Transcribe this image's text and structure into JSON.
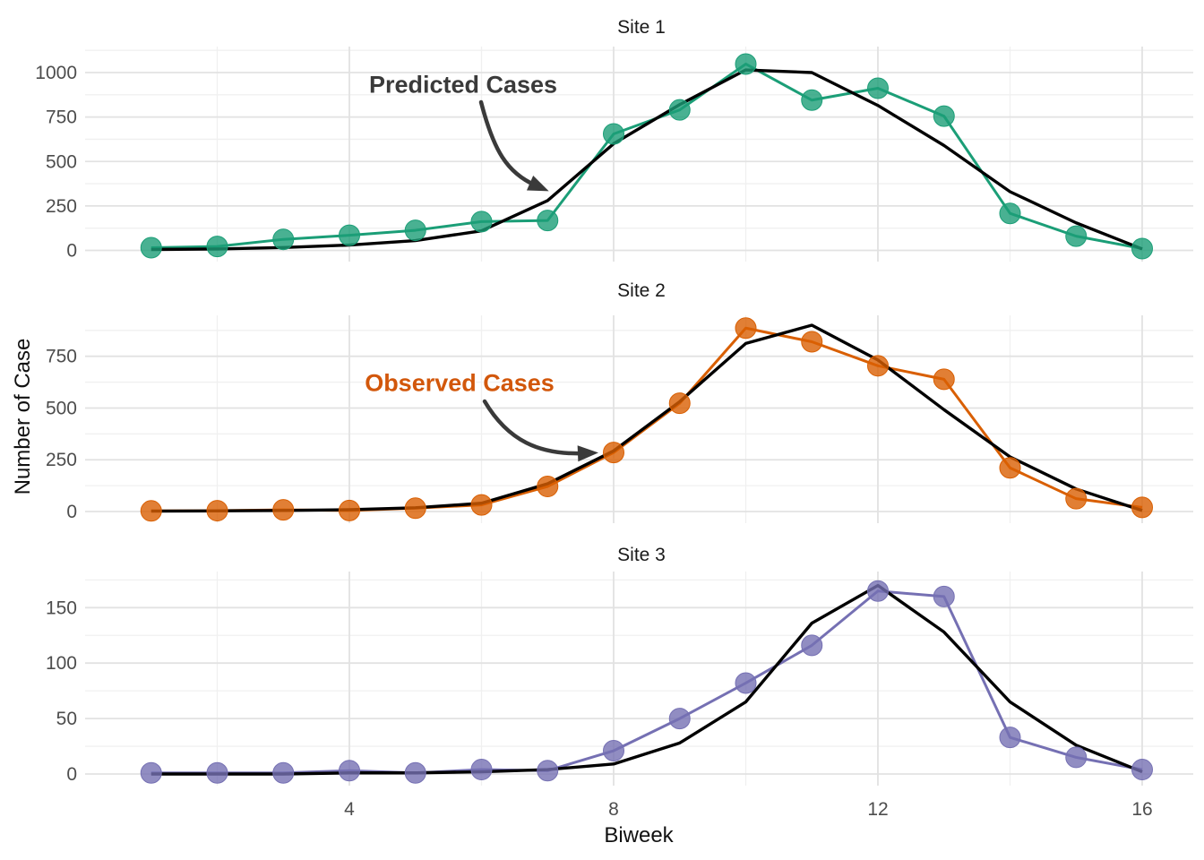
{
  "chart_data": {
    "type": "line",
    "title": "",
    "xlabel": "Biweek",
    "ylabel": "Number of Case",
    "x": [
      1,
      2,
      3,
      4,
      5,
      6,
      7,
      8,
      9,
      10,
      11,
      12,
      13,
      14,
      15,
      16
    ],
    "xticks": [
      4,
      8,
      12,
      16
    ],
    "grid": true,
    "legend_position": "none",
    "panels": [
      {
        "title": "Site 1",
        "ylim": [
          0,
          1125
        ],
        "yticks": [
          0,
          250,
          500,
          750,
          1000
        ],
        "series": [
          {
            "name": "Predicted Cases",
            "style": "line",
            "color": "#000000",
            "values": [
              5,
              8,
              16,
              30,
              55,
              110,
              280,
              600,
              820,
              1015,
              1000,
              815,
              590,
              330,
              155,
              8
            ]
          },
          {
            "name": "Observed Cases",
            "style": "line+points",
            "color": "#1B9E77",
            "values": [
              15,
              22,
              62,
              85,
              113,
              162,
              168,
              655,
              790,
              1048,
              845,
              912,
              755,
              208,
              80,
              10
            ]
          }
        ]
      },
      {
        "title": "Site 2",
        "ylim": [
          0,
          900
        ],
        "yticks": [
          0,
          250,
          500,
          750
        ],
        "series": [
          {
            "name": "Predicted Cases",
            "style": "line",
            "color": "#000000",
            "values": [
              2,
              3,
              5,
              9,
              18,
              40,
              134,
              293,
              531,
              812,
              900,
              732,
              492,
              264,
              109,
              5
            ]
          },
          {
            "name": "Observed Cases",
            "style": "line+points",
            "color": "#D95F02",
            "values": [
              3,
              4,
              8,
              5,
              16,
              32,
              121,
              285,
              523,
              886,
              820,
              704,
              639,
              211,
              62,
              20
            ]
          }
        ]
      },
      {
        "title": "Site 3",
        "ylim": [
          0,
          175
        ],
        "yticks": [
          0,
          50,
          100,
          150
        ],
        "series": [
          {
            "name": "Predicted Cases",
            "style": "line",
            "color": "#000000",
            "values": [
              0,
              0,
              0,
              1,
              1,
              2,
              4,
              9,
              28,
              65,
              136,
              170,
              128,
              65,
              26,
              2
            ]
          },
          {
            "name": "Observed Cases",
            "style": "line+points",
            "color": "#7570B3",
            "values": [
              1,
              1,
              1,
              3,
              1,
              4,
              3,
              21,
              50,
              82,
              116,
              165,
              160,
              33,
              15,
              4
            ]
          }
        ]
      }
    ],
    "annotations": [
      {
        "text": "Predicted Cases",
        "panel": 0,
        "color": "#3A3A3A",
        "arrow": true
      },
      {
        "text": "Observed Cases",
        "panel": 1,
        "color": "#D2570B",
        "arrow": true
      }
    ],
    "colors": {
      "predicted_line": "#000000",
      "site1_observed": "#1B9E77",
      "site2_observed": "#D95F02",
      "site3_observed": "#7570B3",
      "gridline_major": "#E2E2E2",
      "gridline_minor": "#F0F0F0",
      "axis_text": "#4D4D4D",
      "arrow": "#3A3A3A"
    }
  }
}
